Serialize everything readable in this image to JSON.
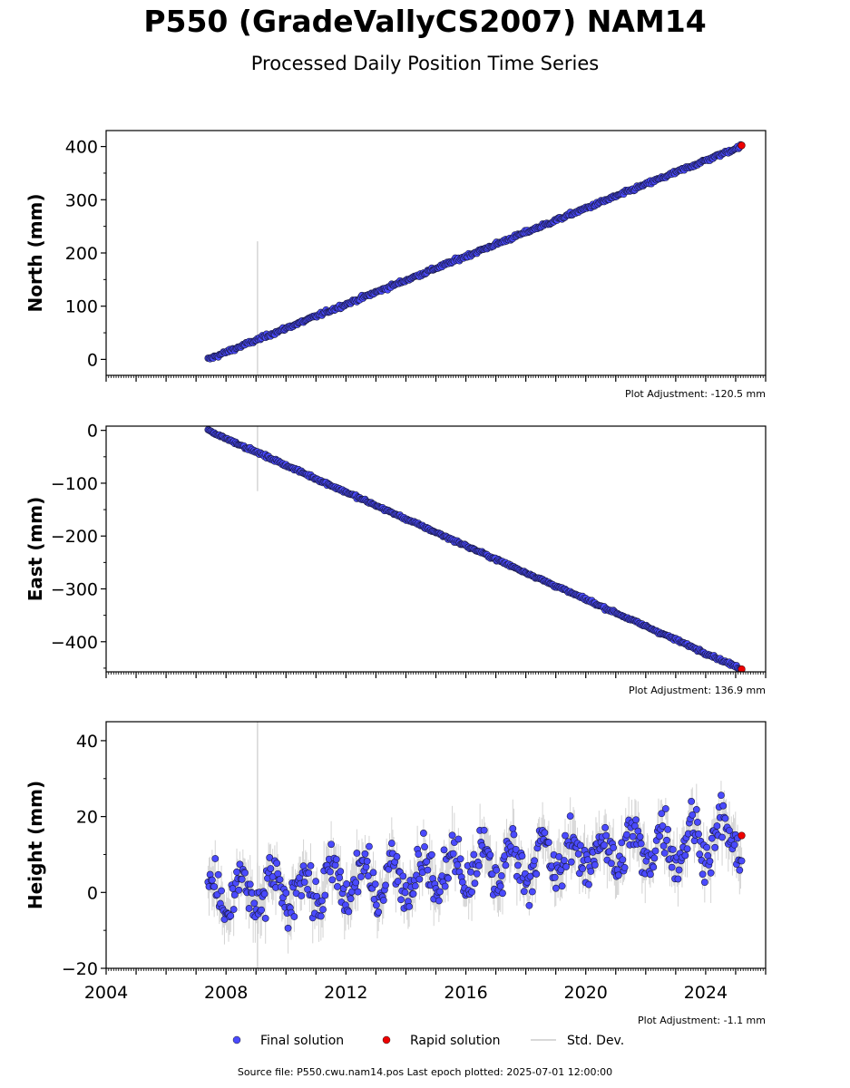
{
  "title": "P550 (GradeVallyCS2007) NAM14",
  "subtitle": "Processed Daily Position Time Series",
  "footer": "Source file: P550.cwu.nam14.pos  Last epoch plotted: 2025-07-01 12:00:00",
  "legend": [
    {
      "label": "Final solution",
      "marker": "circle",
      "color": "#4a4aff"
    },
    {
      "label": "Rapid solution",
      "marker": "circle",
      "color": "#ee0000"
    },
    {
      "label": "Std. Dev.",
      "marker": "line",
      "color": "#cccccc"
    }
  ],
  "colors": {
    "final": "#4a4aff",
    "rapid": "#ee0000",
    "stddev": "#bbbbbb",
    "edge": "#1a1a40"
  },
  "chart_data": [
    {
      "type": "scatter",
      "ylabel": "North (mm)",
      "xlim": [
        2004,
        2026
      ],
      "ylim": [
        -30,
        430
      ],
      "yticks": [
        0,
        100,
        200,
        300,
        400
      ],
      "adjustment": "Plot Adjustment: -120.5 mm",
      "start": {
        "x": 2007.4,
        "y": 0
      },
      "end": {
        "x": 2025.2,
        "y": 401
      },
      "noise_mm": 2,
      "outlier_bar": {
        "x": 2009.05,
        "y_low": -30,
        "y_high": 222
      },
      "rapid_point": {
        "x": 2025.2,
        "y": 402
      }
    },
    {
      "type": "scatter",
      "ylabel": "East (mm)",
      "xlim": [
        2004,
        2026
      ],
      "ylim": [
        -457,
        8
      ],
      "yticks": [
        0,
        -100,
        -200,
        -300,
        -400
      ],
      "adjustment": "Plot Adjustment: 136.9 mm",
      "start": {
        "x": 2007.4,
        "y": 0
      },
      "end": {
        "x": 2025.2,
        "y": -452
      },
      "noise_mm": 1.5,
      "outlier_bar": {
        "x": 2009.05,
        "y_low": -115,
        "y_high": 8
      },
      "rapid_point": {
        "x": 2025.2,
        "y": -452
      }
    },
    {
      "type": "scatter",
      "ylabel": "Height (mm)",
      "xlabel": "",
      "xlim": [
        2004,
        2026
      ],
      "ylim": [
        -20,
        45
      ],
      "yticks": [
        -20,
        0,
        20,
        40
      ],
      "xticks": [
        2004,
        2008,
        2012,
        2016,
        2020,
        2024
      ],
      "adjustment": "Plot Adjustment: -1.1 mm",
      "start": {
        "x": 2007.4,
        "y": -2
      },
      "end": {
        "x": 2025.2,
        "y": 15
      },
      "annual_amplitude_mm": 5,
      "noise_mm": 3.5,
      "outlier_bar": {
        "x": 2009.05,
        "y_low": -20,
        "y_high": 45
      },
      "rapid_point": {
        "x": 2025.2,
        "y": 15
      }
    }
  ]
}
